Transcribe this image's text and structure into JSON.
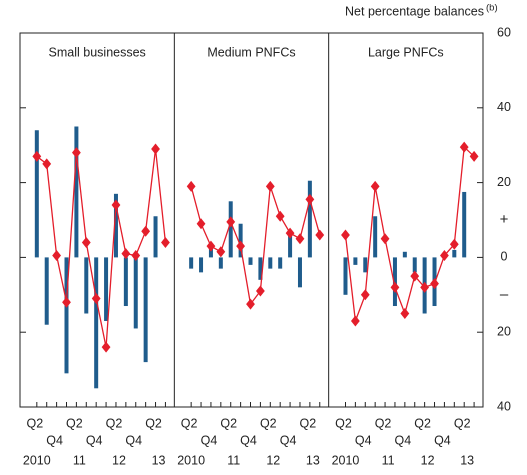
{
  "chart_data": {
    "type": "combo",
    "y_title": "Net percentage balances",
    "y_title_note": "(b)",
    "sign_labels": [
      "+",
      "–"
    ],
    "ylim": [
      -40,
      60
    ],
    "yticks": [
      {
        "value": -40,
        "label": "40"
      },
      {
        "value": -20,
        "label": "20"
      },
      0,
      20,
      40,
      60
    ],
    "categories": [
      "Q2",
      null,
      "Q4",
      null,
      "Q2",
      null,
      "Q4",
      null,
      "Q2",
      null,
      "Q4",
      null,
      "Q2",
      null
    ],
    "year_labels": [
      "2010",
      "11",
      "12",
      "13"
    ],
    "bar_color": "#1f5c8c",
    "line_color": "#e41e2b",
    "panels": [
      {
        "title": "Small businesses",
        "bars": [
          34,
          -18,
          1,
          -31,
          35,
          -15,
          -35,
          -17,
          17,
          -13,
          -19,
          -28,
          11,
          0
        ],
        "line": [
          27,
          25,
          0.5,
          -12,
          28,
          4,
          -11,
          -24,
          14,
          1,
          0.5,
          7,
          29,
          4
        ]
      },
      {
        "title": "Medium PNFCs",
        "bars": [
          -3,
          -4,
          3,
          -3,
          15,
          9,
          -2,
          -6,
          -3,
          -3,
          7,
          -8,
          20.5,
          0
        ],
        "line": [
          19,
          9,
          3,
          1.5,
          9.5,
          3,
          -12.5,
          -9,
          19,
          11,
          6.5,
          5,
          15.5,
          6
        ]
      },
      {
        "title": "Large PNFCs",
        "bars": [
          -10,
          -2,
          -4,
          11,
          0,
          -13,
          1.5,
          -4,
          -15,
          -13,
          0,
          2,
          17.5,
          0
        ],
        "line": [
          6,
          -17,
          -10,
          19,
          5,
          -8,
          -15,
          -5,
          -8,
          -7,
          0.5,
          3.5,
          29.5,
          27
        ]
      }
    ]
  }
}
